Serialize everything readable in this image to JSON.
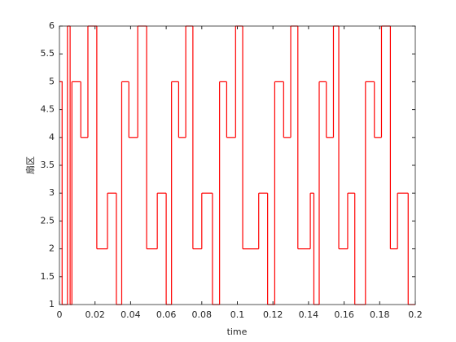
{
  "chart_data": {
    "type": "step",
    "xlabel": "time",
    "ylabel": "扇区",
    "x": [
      0,
      0.0015,
      0.0045,
      0.006,
      0.007,
      0.012,
      0.016,
      0.021,
      0.027,
      0.032,
      0.035,
      0.039,
      0.044,
      0.049,
      0.055,
      0.06,
      0.063,
      0.067,
      0.071,
      0.075,
      0.08,
      0.086,
      0.09,
      0.094,
      0.099,
      0.103,
      0.112,
      0.117,
      0.121,
      0.126,
      0.13,
      0.134,
      0.141,
      0.143,
      0.146,
      0.15,
      0.154,
      0.157,
      0.162,
      0.166,
      0.172,
      0.177,
      0.181,
      0.186,
      0.19,
      0.196
    ],
    "values": [
      5,
      1,
      6,
      1,
      5,
      4,
      6,
      2,
      3,
      1,
      5,
      4,
      6,
      2,
      3,
      1,
      5,
      4,
      6,
      2,
      3,
      1,
      5,
      4,
      6,
      2,
      3,
      1,
      5,
      4,
      6,
      2,
      3,
      1,
      5,
      4,
      6,
      2,
      3,
      1,
      5,
      4,
      6,
      2,
      3,
      1
    ],
    "color": "#ff0000",
    "xlim": [
      0,
      0.2
    ],
    "xticks": [
      0,
      0.02,
      0.04,
      0.06,
      0.08,
      0.1,
      0.12,
      0.14,
      0.16,
      0.18,
      0.2
    ],
    "ylim": [
      1,
      6
    ],
    "yticks": [
      1,
      1.5,
      2,
      2.5,
      3,
      3.5,
      4,
      4.5,
      5,
      5.5,
      6
    ]
  }
}
